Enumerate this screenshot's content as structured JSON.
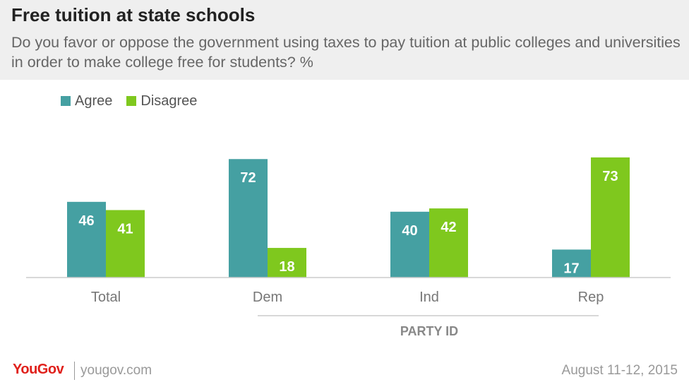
{
  "header": {
    "title": "Free tuition at state schools",
    "subtitle": "Do you favor or oppose the government using taxes to pay tuition at public colleges and universities in order to make college free for students? %"
  },
  "colors": {
    "agree": "#45a0a2",
    "disagree": "#7fc81e"
  },
  "chart_data": {
    "type": "bar",
    "categories": [
      "Total",
      "Dem",
      "Ind",
      "Rep"
    ],
    "series": [
      {
        "name": "Agree",
        "values": [
          46,
          72,
          40,
          17
        ]
      },
      {
        "name": "Disagree",
        "values": [
          41,
          18,
          42,
          73
        ]
      }
    ],
    "ylim": [
      0,
      80
    ],
    "group_label": "PARTY ID",
    "legend": "top-left",
    "grid": false
  },
  "footer": {
    "logo": "YouGov",
    "site": "yougov.com",
    "date": "August 11-12, 2015"
  }
}
